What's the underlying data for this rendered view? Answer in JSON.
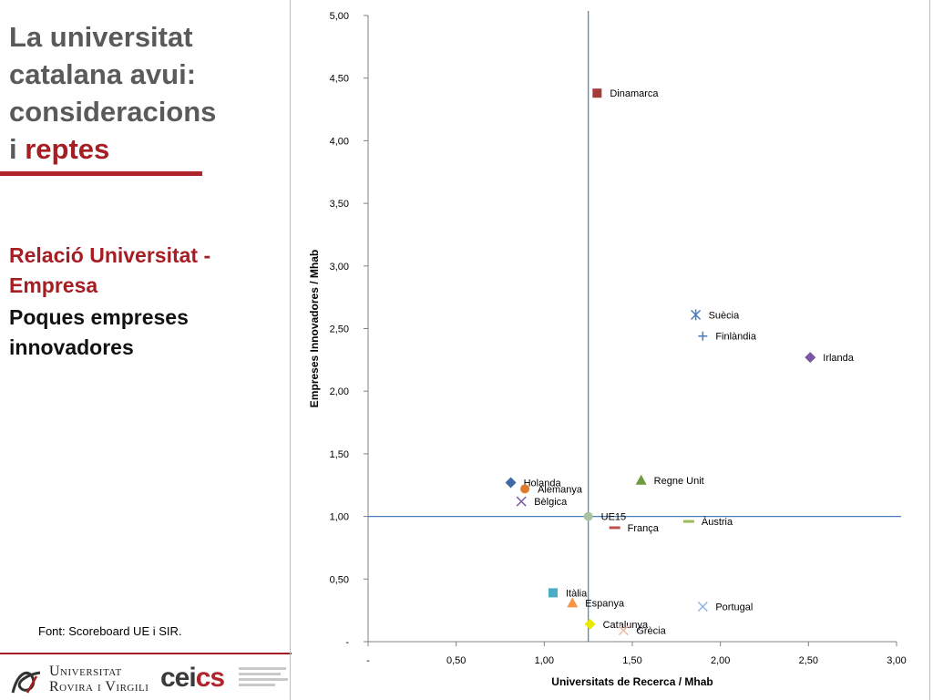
{
  "sidebar": {
    "title_lines": [
      "La universitat",
      "catalana avui:",
      "consideracions"
    ],
    "title_last_prefix": "i ",
    "title_last_accent": "reptes",
    "subheading": "Relació Universitat - Empresa",
    "subtext": "Poques empreses innovadores",
    "source": "Font: Scoreboard UE i SIR."
  },
  "footer": {
    "university_line1": "Universitat",
    "university_line2": "Rovira i Virgili",
    "cei_logo_a": "cei",
    "cei_logo_b": "cs"
  },
  "colors": {
    "accent": "#a51e24",
    "refline": "#4a7ebb"
  },
  "chart_data": {
    "type": "scatter",
    "xlabel": "Universitats de Recerca / Mhab",
    "ylabel": "Empreses Innovadores / Mhab",
    "xlim": [
      0,
      3
    ],
    "ylim": [
      0,
      5
    ],
    "x_ticks": [
      "-",
      "0,50",
      "1,00",
      "1,50",
      "2,00",
      "2,50",
      "3,00"
    ],
    "y_ticks": [
      "-",
      "0,50",
      "1,00",
      "1,50",
      "2,00",
      "2,50",
      "3,00",
      "3,50",
      "4,00",
      "4,50",
      "5,00"
    ],
    "reference_lines": {
      "x": 1.25,
      "y": 1.0
    },
    "grid": false,
    "points": [
      {
        "label": "Dinamarca",
        "x": 1.3,
        "y": 4.38,
        "marker": "square",
        "color": "#a33b3b"
      },
      {
        "label": "Suècia",
        "x": 1.86,
        "y": 2.61,
        "marker": "asterisk",
        "color": "#4a7ebb"
      },
      {
        "label": "Finlàndia",
        "x": 1.9,
        "y": 2.44,
        "marker": "plus",
        "color": "#4a7ebb"
      },
      {
        "label": "Irlanda",
        "x": 2.51,
        "y": 2.27,
        "marker": "diamond",
        "color": "#7b56a4"
      },
      {
        "label": "Holanda",
        "x": 0.81,
        "y": 1.27,
        "marker": "diamond",
        "color": "#3f6aa6"
      },
      {
        "label": "Alemanya",
        "x": 0.89,
        "y": 1.22,
        "marker": "circle",
        "color": "#e07b2e"
      },
      {
        "label": "Bèlgica",
        "x": 0.87,
        "y": 1.12,
        "marker": "x",
        "color": "#7b56a4"
      },
      {
        "label": "Regne Unit",
        "x": 1.55,
        "y": 1.29,
        "marker": "triangle",
        "color": "#6f9a3e"
      },
      {
        "label": "UE15",
        "x": 1.25,
        "y": 1.0,
        "marker": "circle",
        "color": "#a9c3a0"
      },
      {
        "label": "Àustria",
        "x": 1.82,
        "y": 0.96,
        "marker": "dash",
        "color": "#9bbb59"
      },
      {
        "label": "França",
        "x": 1.4,
        "y": 0.91,
        "marker": "dash",
        "color": "#c0504d"
      },
      {
        "label": "Itàlia",
        "x": 1.05,
        "y": 0.39,
        "marker": "square",
        "color": "#4bacc6"
      },
      {
        "label": "Espanya",
        "x": 1.16,
        "y": 0.31,
        "marker": "triangle",
        "color": "#f79646"
      },
      {
        "label": "Portugal",
        "x": 1.9,
        "y": 0.28,
        "marker": "x",
        "color": "#8eb4e3"
      },
      {
        "label": "Catalunya",
        "x": 1.26,
        "y": 0.14,
        "marker": "diamond",
        "color": "#e8e800"
      },
      {
        "label": "Grècia",
        "x": 1.45,
        "y": 0.09,
        "marker": "x",
        "color": "#f2b7a0"
      }
    ]
  }
}
